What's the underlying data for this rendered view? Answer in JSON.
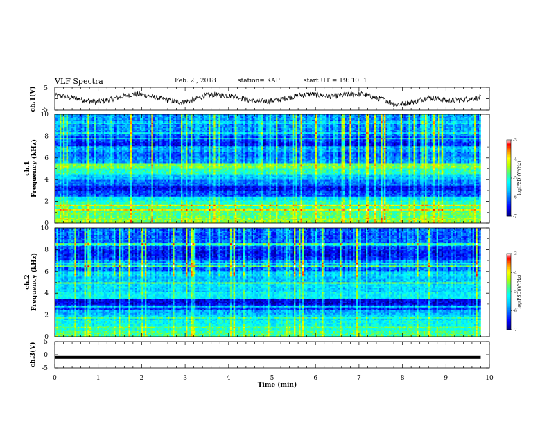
{
  "header": {
    "title": "VLF Spectra",
    "date": "Feb. 2 , 2018",
    "station": "station= KAP",
    "start_ut": "start  UT =  19: 10: 1"
  },
  "chart_data": [
    {
      "type": "line",
      "panel": "ch1-waveform",
      "ylabel": "ch.1(V)",
      "ylim": [
        -5,
        5
      ],
      "yticks": [
        "5",
        "-5"
      ],
      "xlim": [
        0,
        10
      ],
      "x_end": 9.8,
      "baseline": [
        1.5,
        0.8,
        0.2,
        -0.8,
        -1.5,
        -0.5,
        0.5,
        1.8,
        2.0,
        1.0,
        0.0,
        -1.0,
        -1.5,
        -0.5,
        1.2,
        1.8,
        1.5,
        1.0,
        -0.5,
        -1.2,
        -1.0,
        -0.5,
        0.5,
        1.5,
        2.0,
        1.5,
        1.0,
        1.5,
        2.0,
        2.0,
        0.5,
        -0.5,
        -2.5,
        -2.0,
        -1.0,
        0.5,
        0.0,
        -1.0,
        -0.5,
        0.0,
        0.5
      ]
    },
    {
      "type": "heatmap",
      "panel": "ch1-spectrogram",
      "ylabel": "ch.1\nFrequency (kHz)",
      "ylim": [
        0,
        10
      ],
      "yticks": [
        "0",
        "2",
        "4",
        "6",
        "8",
        "10"
      ],
      "xlim": [
        0,
        10
      ],
      "x_end": 9.8,
      "colorbar": {
        "label": "log(PSD)(V²/Hz)",
        "range": [
          -7,
          -3
        ],
        "ticks": [
          "-3",
          "-4",
          "-5",
          "-6",
          "-7"
        ]
      },
      "frequency_kHz": [
        0.25,
        0.75,
        1.25,
        1.75,
        2.25,
        2.75,
        3.25,
        3.75,
        4.25,
        4.75,
        5.25,
        5.75,
        6.25,
        6.75,
        7.25,
        7.75,
        8.25,
        8.75,
        9.25,
        9.75
      ],
      "mean_log_psd": [
        -4.5,
        -4.7,
        -4.8,
        -5.0,
        -5.3,
        -6.2,
        -6.5,
        -6.0,
        -5.6,
        -5.0,
        -4.6,
        -5.8,
        -6.0,
        -5.7,
        -6.4,
        -6.2,
        -5.9,
        -5.8,
        -5.9,
        -5.8
      ]
    },
    {
      "type": "heatmap",
      "panel": "ch2-spectrogram",
      "ylabel": "ch.2\nFrequency (kHz)",
      "ylim": [
        0,
        10
      ],
      "yticks": [
        "0",
        "2",
        "4",
        "6",
        "8",
        "10"
      ],
      "xlim": [
        0,
        10
      ],
      "x_end": 9.8,
      "colorbar": {
        "label": "log(PSD)(V²/Hz)",
        "range": [
          -7,
          -3
        ],
        "ticks": [
          "-3",
          "-4",
          "-5",
          "-6",
          "-7"
        ]
      },
      "frequency_kHz": [
        0.25,
        0.75,
        1.25,
        1.75,
        2.25,
        2.75,
        3.25,
        3.75,
        4.25,
        4.75,
        5.25,
        5.75,
        6.25,
        6.75,
        7.25,
        7.75,
        8.25,
        8.75,
        9.25,
        9.75
      ],
      "mean_log_psd": [
        -4.8,
        -5.0,
        -5.2,
        -5.5,
        -5.7,
        -6.3,
        -6.6,
        -5.3,
        -5.5,
        -5.4,
        -5.6,
        -5.4,
        -6.0,
        -5.8,
        -6.3,
        -6.4,
        -6.2,
        -6.0,
        -6.1,
        -6.0
      ]
    },
    {
      "type": "line",
      "panel": "ch3-waveform",
      "ylabel": "ch.3(V)",
      "ylim": [
        -5,
        5
      ],
      "yticks": [
        "5",
        "0",
        "-5"
      ],
      "xlim": [
        0,
        10
      ],
      "x_end": 9.8,
      "constant_value": -1.0
    }
  ],
  "x_axis": {
    "label": "Time (min)",
    "ticks": [
      "0",
      "1",
      "2",
      "3",
      "4",
      "5",
      "6",
      "7",
      "8",
      "9",
      "10"
    ]
  },
  "colors": {
    "trace": "#000000",
    "colormap": [
      "#00007f",
      "#0000ff",
      "#0080ff",
      "#00ffff",
      "#00ff80",
      "#80ff00",
      "#ffff00",
      "#ff8000",
      "#ff0000",
      "#ffffff"
    ]
  }
}
